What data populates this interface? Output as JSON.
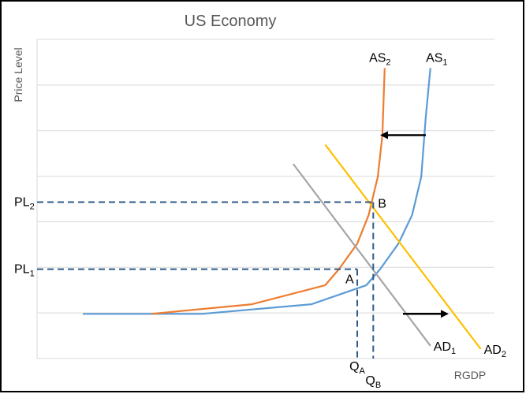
{
  "chart_data": {
    "type": "line",
    "title": "US Economy",
    "xlabel": "RGDP",
    "ylabel": "Price Level",
    "grid": true,
    "series": [
      {
        "name": "AS1",
        "label_main": "AS",
        "label_sub": "1",
        "color": "#5b9bd5",
        "points": [
          [
            0.1,
            0.14
          ],
          [
            0.36,
            0.14
          ],
          [
            0.6,
            0.17
          ],
          [
            0.72,
            0.23
          ],
          [
            0.75,
            0.28
          ],
          [
            0.79,
            0.36
          ],
          [
            0.82,
            0.45
          ],
          [
            0.84,
            0.57
          ],
          [
            0.85,
            0.76
          ],
          [
            0.86,
            0.91
          ]
        ]
      },
      {
        "name": "AS2",
        "label_main": "AS",
        "label_sub": "2",
        "color": "#ed7d31",
        "points": [
          [
            0.25,
            0.14
          ],
          [
            0.47,
            0.17
          ],
          [
            0.63,
            0.23
          ],
          [
            0.66,
            0.28
          ],
          [
            0.7,
            0.36
          ],
          [
            0.725,
            0.45
          ],
          [
            0.745,
            0.57
          ],
          [
            0.755,
            0.7
          ],
          [
            0.76,
            0.91
          ]
        ]
      },
      {
        "name": "AD1",
        "label_main": "AD",
        "label_sub": "1",
        "color": "#a5a5a5",
        "points": [
          [
            0.56,
            0.61
          ],
          [
            0.86,
            0.04
          ]
        ]
      },
      {
        "name": "AD2",
        "label_main": "AD",
        "label_sub": "2",
        "color": "#ffc000",
        "points": [
          [
            0.63,
            0.67
          ],
          [
            0.97,
            0.03
          ]
        ]
      }
    ],
    "equilibria": [
      {
        "label": "A",
        "x": 0.7,
        "y": 0.28,
        "price_main": "PL",
        "price_sub": "1",
        "qty_main": "Q",
        "qty_sub": "A"
      },
      {
        "label": "B",
        "x": 0.735,
        "y": 0.49,
        "price_main": "PL",
        "price_sub": "2",
        "qty_main": "Q",
        "qty_sub": "B"
      }
    ],
    "arrows": [
      {
        "from": [
          0.85,
          0.7
        ],
        "to": [
          0.75,
          0.7
        ]
      },
      {
        "from": [
          0.8,
          0.14
        ],
        "to": [
          0.9,
          0.14
        ]
      }
    ],
    "xlim": [
      0,
      1
    ],
    "ylim": [
      0,
      1
    ]
  }
}
